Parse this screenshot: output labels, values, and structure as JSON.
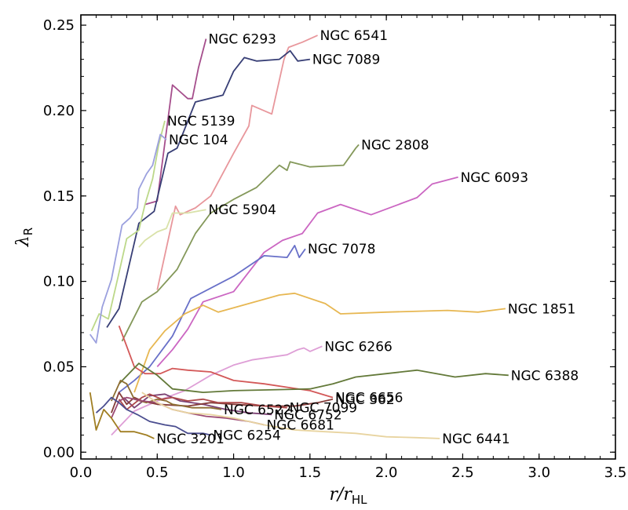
{
  "chart_data": {
    "type": "line",
    "xlabel": "r/r_HL",
    "xlabel_main": "r/r",
    "xlabel_sub": "HL",
    "ylabel": "λ_R",
    "ylabel_main": "λ",
    "ylabel_sub": "R",
    "xlim": [
      0.0,
      3.5
    ],
    "ylim": [
      -0.004,
      0.256
    ],
    "x_ticks": [
      0.0,
      0.5,
      1.0,
      1.5,
      2.0,
      2.5,
      3.0,
      3.5
    ],
    "x_tick_labels": [
      "0.0",
      "0.5",
      "1.0",
      "1.5",
      "2.0",
      "2.5",
      "3.0",
      "3.5"
    ],
    "y_ticks": [
      0.0,
      0.05,
      0.1,
      0.15,
      0.2,
      0.25
    ],
    "y_tick_labels": [
      "0.00",
      "0.05",
      "0.10",
      "0.15",
      "0.20",
      "0.25"
    ],
    "grid": false,
    "series": [
      {
        "name": "NGC 6293",
        "color": "#a54e8c",
        "points": [
          [
            0.42,
            0.145
          ],
          [
            0.5,
            0.147
          ],
          [
            0.6,
            0.215
          ],
          [
            0.65,
            0.211
          ],
          [
            0.7,
            0.207
          ],
          [
            0.73,
            0.207
          ],
          [
            0.77,
            0.225
          ],
          [
            0.82,
            0.242
          ]
        ]
      },
      {
        "name": "NGC 6541",
        "color": "#e8979c",
        "points": [
          [
            0.5,
            0.095
          ],
          [
            0.62,
            0.144
          ],
          [
            0.65,
            0.139
          ],
          [
            0.75,
            0.143
          ],
          [
            0.85,
            0.15
          ],
          [
            1.0,
            0.175
          ],
          [
            1.1,
            0.191
          ],
          [
            1.12,
            0.203
          ],
          [
            1.25,
            0.198
          ],
          [
            1.33,
            0.23
          ],
          [
            1.36,
            0.237
          ],
          [
            1.45,
            0.24
          ],
          [
            1.55,
            0.244
          ]
        ]
      },
      {
        "name": "NGC 7089",
        "color": "#383f76",
        "points": [
          [
            0.17,
            0.073
          ],
          [
            0.25,
            0.084
          ],
          [
            0.38,
            0.134
          ],
          [
            0.48,
            0.141
          ],
          [
            0.57,
            0.175
          ],
          [
            0.63,
            0.178
          ],
          [
            0.75,
            0.205
          ],
          [
            0.93,
            0.209
          ],
          [
            1.0,
            0.223
          ],
          [
            1.07,
            0.231
          ],
          [
            1.15,
            0.229
          ],
          [
            1.3,
            0.23
          ],
          [
            1.37,
            0.235
          ],
          [
            1.42,
            0.229
          ],
          [
            1.5,
            0.23
          ]
        ]
      },
      {
        "name": "NGC 5139",
        "color": "#bcd889",
        "points": [
          [
            0.07,
            0.071
          ],
          [
            0.12,
            0.081
          ],
          [
            0.18,
            0.078
          ],
          [
            0.25,
            0.105
          ],
          [
            0.3,
            0.125
          ],
          [
            0.38,
            0.13
          ],
          [
            0.42,
            0.145
          ],
          [
            0.47,
            0.16
          ],
          [
            0.51,
            0.18
          ],
          [
            0.55,
            0.194
          ]
        ]
      },
      {
        "name": "NGC 104",
        "color": "#9ba0de",
        "points": [
          [
            0.06,
            0.069
          ],
          [
            0.1,
            0.064
          ],
          [
            0.14,
            0.085
          ],
          [
            0.2,
            0.101
          ],
          [
            0.27,
            0.133
          ],
          [
            0.32,
            0.137
          ],
          [
            0.37,
            0.143
          ],
          [
            0.38,
            0.154
          ],
          [
            0.43,
            0.163
          ],
          [
            0.47,
            0.168
          ],
          [
            0.52,
            0.186
          ],
          [
            0.56,
            0.183
          ]
        ]
      },
      {
        "name": "NGC 2808",
        "color": "#84985a",
        "points": [
          [
            0.27,
            0.065
          ],
          [
            0.4,
            0.088
          ],
          [
            0.5,
            0.094
          ],
          [
            0.63,
            0.107
          ],
          [
            0.75,
            0.128
          ],
          [
            0.85,
            0.14
          ],
          [
            1.0,
            0.148
          ],
          [
            1.15,
            0.155
          ],
          [
            1.3,
            0.168
          ],
          [
            1.35,
            0.165
          ],
          [
            1.37,
            0.17
          ],
          [
            1.5,
            0.167
          ],
          [
            1.72,
            0.168
          ],
          [
            1.8,
            0.178
          ],
          [
            1.82,
            0.18
          ]
        ]
      },
      {
        "name": "NGC 6093",
        "color": "#cb66c2",
        "points": [
          [
            0.5,
            0.05
          ],
          [
            0.6,
            0.06
          ],
          [
            0.7,
            0.072
          ],
          [
            0.8,
            0.088
          ],
          [
            1.0,
            0.094
          ],
          [
            1.2,
            0.117
          ],
          [
            1.32,
            0.124
          ],
          [
            1.45,
            0.128
          ],
          [
            1.55,
            0.14
          ],
          [
            1.7,
            0.145
          ],
          [
            1.9,
            0.139
          ],
          [
            2.05,
            0.144
          ],
          [
            2.2,
            0.149
          ],
          [
            2.3,
            0.157
          ],
          [
            2.47,
            0.161
          ]
        ]
      },
      {
        "name": "NGC 5904",
        "color": "#d9e2a9",
        "points": [
          [
            0.38,
            0.12
          ],
          [
            0.42,
            0.124
          ],
          [
            0.5,
            0.129
          ],
          [
            0.56,
            0.131
          ],
          [
            0.6,
            0.14
          ],
          [
            0.7,
            0.14
          ],
          [
            0.82,
            0.142
          ]
        ]
      },
      {
        "name": "NGC 7078",
        "color": "#6870c8",
        "points": [
          [
            0.25,
            0.035
          ],
          [
            0.35,
            0.042
          ],
          [
            0.45,
            0.05
          ],
          [
            0.6,
            0.068
          ],
          [
            0.72,
            0.09
          ],
          [
            1.0,
            0.103
          ],
          [
            1.2,
            0.115
          ],
          [
            1.35,
            0.114
          ],
          [
            1.4,
            0.121
          ],
          [
            1.43,
            0.114
          ],
          [
            1.47,
            0.119
          ]
        ]
      },
      {
        "name": "NGC 1851",
        "color": "#e7b752",
        "points": [
          [
            0.35,
            0.035
          ],
          [
            0.45,
            0.06
          ],
          [
            0.55,
            0.071
          ],
          [
            0.68,
            0.081
          ],
          [
            0.8,
            0.086
          ],
          [
            0.9,
            0.082
          ],
          [
            1.1,
            0.087
          ],
          [
            1.3,
            0.092
          ],
          [
            1.4,
            0.093
          ],
          [
            1.6,
            0.087
          ],
          [
            1.7,
            0.081
          ],
          [
            2.0,
            0.082
          ],
          [
            2.4,
            0.083
          ],
          [
            2.6,
            0.082
          ],
          [
            2.78,
            0.084
          ]
        ]
      },
      {
        "name": "NGC 6266",
        "color": "#de9ed6",
        "points": [
          [
            0.2,
            0.01
          ],
          [
            0.35,
            0.024
          ],
          [
            0.5,
            0.03
          ],
          [
            0.68,
            0.036
          ],
          [
            0.85,
            0.045
          ],
          [
            1.0,
            0.051
          ],
          [
            1.12,
            0.054
          ],
          [
            1.35,
            0.057
          ],
          [
            1.42,
            0.06
          ],
          [
            1.46,
            0.061
          ],
          [
            1.5,
            0.059
          ],
          [
            1.58,
            0.062
          ]
        ]
      },
      {
        "name": "NGC 6656",
        "color": "#d35858",
        "points": [
          [
            0.25,
            0.074
          ],
          [
            0.3,
            0.062
          ],
          [
            0.35,
            0.05
          ],
          [
            0.42,
            0.046
          ],
          [
            0.52,
            0.046
          ],
          [
            0.6,
            0.049
          ],
          [
            0.7,
            0.048
          ],
          [
            0.85,
            0.047
          ],
          [
            1.0,
            0.042
          ],
          [
            1.2,
            0.04
          ],
          [
            1.5,
            0.036
          ],
          [
            1.65,
            0.032
          ]
        ]
      },
      {
        "name": "NGC 6388",
        "color": "#637939",
        "points": [
          [
            0.25,
            0.04
          ],
          [
            0.38,
            0.052
          ],
          [
            0.5,
            0.045
          ],
          [
            0.6,
            0.037
          ],
          [
            0.8,
            0.035
          ],
          [
            1.0,
            0.036
          ],
          [
            1.5,
            0.037
          ],
          [
            1.65,
            0.04
          ],
          [
            1.8,
            0.044
          ],
          [
            2.0,
            0.046
          ],
          [
            2.2,
            0.048
          ],
          [
            2.45,
            0.044
          ],
          [
            2.65,
            0.046
          ],
          [
            2.8,
            0.045
          ]
        ]
      },
      {
        "name": "NGC 6752",
        "color": "#7b4173",
        "points": [
          [
            0.28,
            0.032
          ],
          [
            0.35,
            0.026
          ],
          [
            0.45,
            0.033
          ],
          [
            0.55,
            0.034
          ],
          [
            0.65,
            0.03
          ],
          [
            0.8,
            0.028
          ],
          [
            0.95,
            0.025
          ],
          [
            1.1,
            0.023
          ],
          [
            1.25,
            0.022
          ]
        ]
      },
      {
        "name": "NGC 362",
        "color": "#843c39",
        "points": [
          [
            0.2,
            0.023
          ],
          [
            0.25,
            0.035
          ],
          [
            0.3,
            0.028
          ],
          [
            0.35,
            0.032
          ],
          [
            0.4,
            0.03
          ],
          [
            0.5,
            0.028
          ],
          [
            0.7,
            0.027
          ],
          [
            0.85,
            0.029
          ],
          [
            1.0,
            0.028
          ],
          [
            1.2,
            0.027
          ],
          [
            1.4,
            0.027
          ],
          [
            1.55,
            0.029
          ],
          [
            1.65,
            0.031
          ]
        ]
      },
      {
        "name": "NGC 6522",
        "color": "#8c6d31",
        "points": [
          [
            0.2,
            0.03
          ],
          [
            0.26,
            0.042
          ],
          [
            0.3,
            0.04
          ],
          [
            0.35,
            0.031
          ],
          [
            0.43,
            0.029
          ],
          [
            0.5,
            0.031
          ],
          [
            0.56,
            0.03
          ],
          [
            0.6,
            0.028
          ],
          [
            0.67,
            0.027
          ],
          [
            0.73,
            0.026
          ],
          [
            0.85,
            0.026
          ],
          [
            0.92,
            0.025
          ]
        ]
      },
      {
        "name": "NGC 7099",
        "color": "#ad494a",
        "points": [
          [
            0.25,
            0.031
          ],
          [
            0.3,
            0.025
          ],
          [
            0.4,
            0.032
          ],
          [
            0.45,
            0.034
          ],
          [
            0.53,
            0.031
          ],
          [
            0.6,
            0.032
          ],
          [
            0.7,
            0.03
          ],
          [
            0.8,
            0.031
          ],
          [
            0.9,
            0.029
          ],
          [
            1.05,
            0.029
          ],
          [
            1.2,
            0.027
          ],
          [
            1.35,
            0.026
          ]
        ]
      },
      {
        "name": "NGC 6681",
        "color": "#9c4a74",
        "points": [
          [
            0.2,
            0.02
          ],
          [
            0.25,
            0.03
          ],
          [
            0.3,
            0.032
          ],
          [
            0.35,
            0.031
          ],
          [
            0.4,
            0.03
          ],
          [
            0.5,
            0.029
          ],
          [
            0.6,
            0.025
          ],
          [
            0.7,
            0.023
          ],
          [
            0.82,
            0.021
          ],
          [
            0.95,
            0.02
          ],
          [
            1.1,
            0.018
          ],
          [
            1.2,
            0.016
          ]
        ]
      },
      {
        "name": "NGC 6254",
        "color": "#4a4d8f",
        "points": [
          [
            0.1,
            0.023
          ],
          [
            0.15,
            0.027
          ],
          [
            0.2,
            0.032
          ],
          [
            0.25,
            0.029
          ],
          [
            0.3,
            0.025
          ],
          [
            0.37,
            0.022
          ],
          [
            0.45,
            0.018
          ],
          [
            0.55,
            0.016
          ],
          [
            0.62,
            0.015
          ],
          [
            0.7,
            0.011
          ],
          [
            0.8,
            0.011
          ],
          [
            0.85,
            0.01
          ]
        ]
      },
      {
        "name": "NGC 6441",
        "color": "#e8d4a0",
        "points": [
          [
            0.4,
            0.035
          ],
          [
            0.5,
            0.029
          ],
          [
            0.6,
            0.025
          ],
          [
            0.7,
            0.023
          ],
          [
            0.85,
            0.022
          ],
          [
            1.0,
            0.02
          ],
          [
            1.2,
            0.016
          ],
          [
            1.4,
            0.013
          ],
          [
            1.6,
            0.012
          ],
          [
            1.8,
            0.011
          ],
          [
            2.0,
            0.009
          ],
          [
            2.2,
            0.0085
          ],
          [
            2.35,
            0.008
          ]
        ]
      },
      {
        "name": "NGC 3201",
        "color": "#a07e22",
        "points": [
          [
            0.06,
            0.035
          ],
          [
            0.1,
            0.013
          ],
          [
            0.15,
            0.025
          ],
          [
            0.2,
            0.02
          ],
          [
            0.26,
            0.012
          ],
          [
            0.35,
            0.012
          ],
          [
            0.43,
            0.01
          ],
          [
            0.48,
            0.008
          ]
        ]
      }
    ]
  }
}
